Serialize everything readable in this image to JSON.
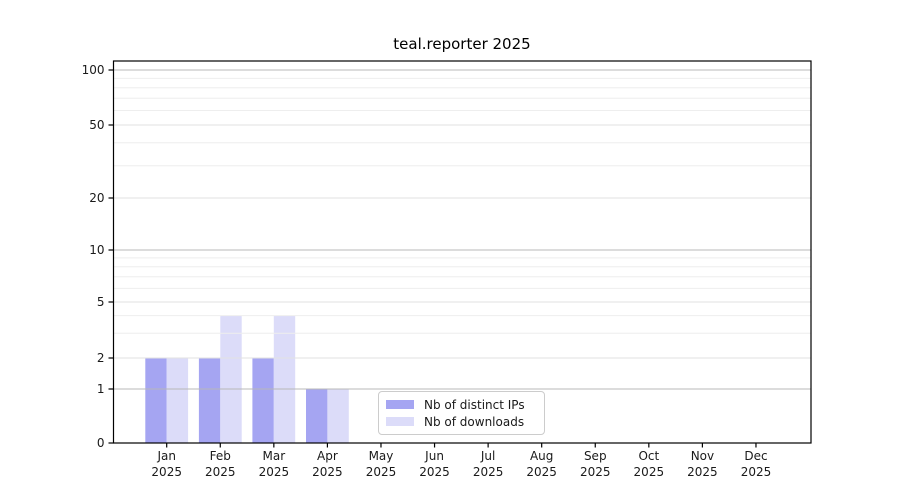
{
  "chart_data": {
    "type": "bar",
    "title": "teal.reporter 2025",
    "categories": [
      "Jan",
      "Feb",
      "Mar",
      "Apr",
      "May",
      "Jun",
      "Jul",
      "Aug",
      "Sep",
      "Oct",
      "Nov",
      "Dec"
    ],
    "xtick_year": "2025",
    "series": [
      {
        "name": "Nb of distinct IPs",
        "color": "#a5a5f2",
        "values": [
          2,
          2,
          2,
          1,
          0,
          0,
          0,
          0,
          0,
          0,
          0,
          0
        ]
      },
      {
        "name": "Nb of downloads",
        "color": "#dcdcf9",
        "values": [
          2,
          4,
          4,
          1,
          0,
          0,
          0,
          0,
          0,
          0,
          0,
          0
        ]
      }
    ],
    "yticks": [
      0,
      1,
      2,
      5,
      10,
      20,
      50,
      100
    ],
    "yscale": "symlog",
    "ylim": [
      0,
      112
    ],
    "grid": true,
    "legend": {
      "position": "bottom-center",
      "entries": [
        "Nb of distinct IPs",
        "Nb of downloads"
      ]
    },
    "colors": {
      "grid_decade": "#b8b8b8",
      "grid_labeled": "#e2e2e2",
      "grid_minor": "#eeeeee",
      "axis": "#000000",
      "text": "#1a1a1a",
      "background": "#ffffff"
    }
  }
}
